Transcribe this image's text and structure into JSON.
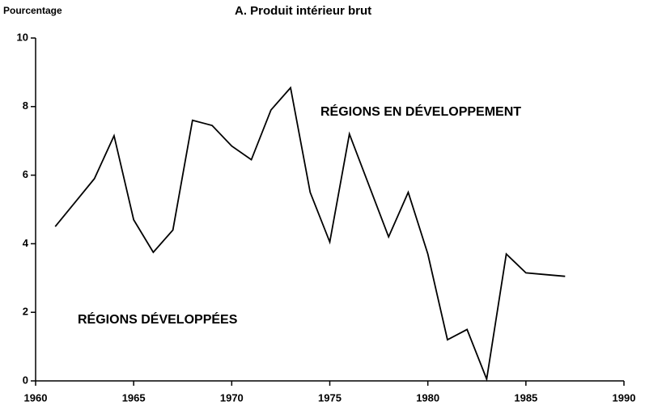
{
  "chart_data": {
    "type": "line",
    "title": "A. Produit intérieur brut",
    "ylabel": "Pourcentage",
    "annotations": [
      "RÉGIONS EN DÉVELOPPEMENT",
      "RÉGIONS DÉVELOPPÉES"
    ],
    "x": [
      1961,
      1962,
      1963,
      1964,
      1965,
      1966,
      1967,
      1968,
      1969,
      1970,
      1971,
      1972,
      1973,
      1974,
      1975,
      1976,
      1977,
      1978,
      1979,
      1980,
      1981,
      1982,
      1983,
      1984,
      1985,
      1986,
      1987
    ],
    "values": [
      4.5,
      5.2,
      5.9,
      7.15,
      4.7,
      3.75,
      4.4,
      7.6,
      7.45,
      6.85,
      6.45,
      7.9,
      8.55,
      5.5,
      4.05,
      7.2,
      5.7,
      4.2,
      5.5,
      3.7,
      1.2,
      1.5,
      0.05,
      3.7,
      3.15,
      3.1,
      3.05
    ],
    "color": "#000000",
    "xlim": [
      1960,
      1990
    ],
    "xticks": [
      1960,
      1965,
      1970,
      1975,
      1980,
      1985,
      1990
    ],
    "ylim": [
      0,
      10
    ],
    "yticks": [
      0,
      2,
      4,
      6,
      8,
      10
    ],
    "grid": false
  }
}
